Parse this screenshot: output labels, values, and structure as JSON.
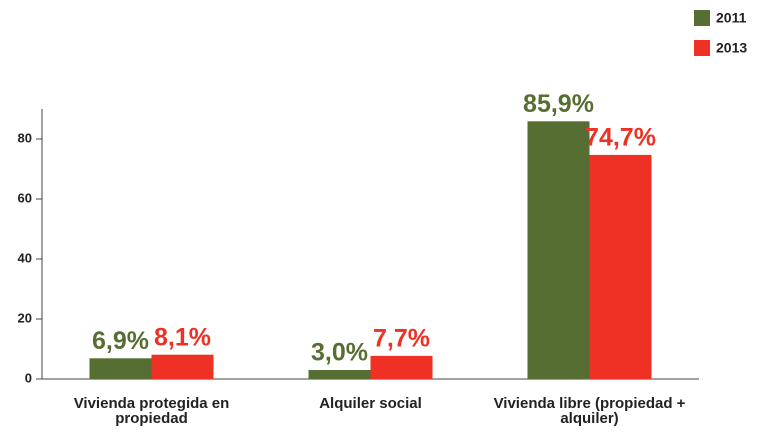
{
  "chart_data": {
    "type": "bar",
    "categories": [
      "Vivienda protegida en propiedad",
      "Alquiler social",
      "Vivienda libre (propiedad + alquiler)"
    ],
    "series": [
      {
        "name": "2011",
        "color": "#566e31",
        "values": [
          6.9,
          3.0,
          85.9
        ],
        "value_labels": [
          "6,9%",
          "3,0%",
          "85,9%"
        ]
      },
      {
        "name": "2013",
        "color": "#ee3124",
        "values": [
          8.1,
          7.7,
          74.7
        ],
        "value_labels": [
          "8,1%",
          "7,7%",
          "74,7%"
        ]
      }
    ],
    "ylim": [
      0,
      90
    ],
    "yticks": [
      0,
      20,
      40,
      60,
      80
    ],
    "grid": false,
    "legend": "top-right"
  }
}
